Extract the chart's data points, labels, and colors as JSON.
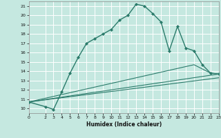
{
  "xlabel": "Humidex (Indice chaleur)",
  "bg_color": "#c5e8e0",
  "grid_color": "#ffffff",
  "line_color": "#2a7a6a",
  "xlim": [
    0,
    23
  ],
  "ylim": [
    9.5,
    21.5
  ],
  "xticks": [
    0,
    2,
    3,
    4,
    5,
    6,
    7,
    8,
    9,
    10,
    11,
    12,
    13,
    14,
    15,
    16,
    17,
    18,
    19,
    20,
    21,
    22,
    23
  ],
  "yticks": [
    10,
    11,
    12,
    13,
    14,
    15,
    16,
    17,
    18,
    19,
    20,
    21
  ],
  "main_x": [
    0,
    2,
    3,
    4,
    5,
    6,
    7,
    8,
    9,
    10,
    11,
    12,
    13,
    14,
    15,
    16,
    17,
    18,
    19,
    20,
    21,
    22,
    23
  ],
  "main_y": [
    10.7,
    10.2,
    9.9,
    11.8,
    13.8,
    15.5,
    17.0,
    17.5,
    18.0,
    18.5,
    19.5,
    20.0,
    21.2,
    21.0,
    20.2,
    19.3,
    16.2,
    18.8,
    16.5,
    16.2,
    14.7,
    13.8,
    13.7
  ],
  "line1_x": [
    0,
    23
  ],
  "line1_y": [
    10.7,
    13.7
  ],
  "line2_x": [
    0,
    20,
    22,
    23
  ],
  "line2_y": [
    10.7,
    14.7,
    13.8,
    13.7
  ],
  "line3_x": [
    0,
    23
  ],
  "line3_y": [
    10.7,
    13.3
  ]
}
